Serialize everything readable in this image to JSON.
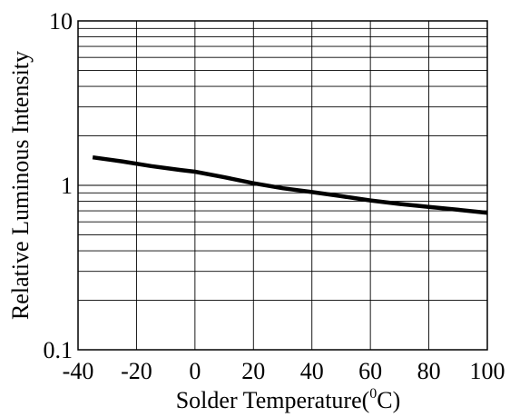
{
  "chart_data": {
    "type": "line",
    "title": "",
    "xlabel": {
      "prefix": "Solder Temperature(",
      "superscript": "0",
      "suffix": "C)"
    },
    "ylabel": "Relative Luminous Intensity",
    "xlim": [
      -40,
      100
    ],
    "ylim": [
      0.1,
      10
    ],
    "yscale": "log",
    "grid": true,
    "x_ticks": [
      -40,
      -20,
      0,
      20,
      40,
      60,
      80,
      100
    ],
    "x_tick_labels": [
      "-40",
      "-20",
      "0",
      "20",
      "40",
      "60",
      "80",
      "100"
    ],
    "y_ticks": [
      0.1,
      1,
      10
    ],
    "y_tick_labels": [
      "0.1",
      "1",
      "10"
    ],
    "y_minor_grid": [
      0.2,
      0.3,
      0.4,
      0.5,
      0.6,
      0.7,
      0.8,
      0.9,
      2,
      3,
      4,
      5,
      6,
      7,
      8,
      9
    ],
    "series": [
      {
        "color": "#000000",
        "x": [
          -35,
          -25,
          -15,
          -5,
          0,
          10,
          20,
          30,
          40,
          50,
          60,
          70,
          80,
          90,
          100
        ],
        "y": [
          1.48,
          1.4,
          1.31,
          1.24,
          1.21,
          1.12,
          1.03,
          0.96,
          0.91,
          0.86,
          0.81,
          0.77,
          0.74,
          0.71,
          0.68
        ]
      }
    ]
  }
}
